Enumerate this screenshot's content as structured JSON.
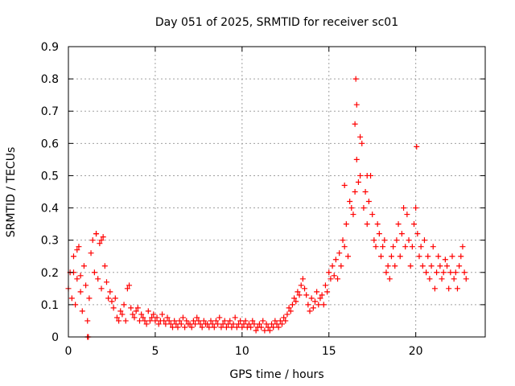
{
  "chart_data": {
    "type": "scatter",
    "title": "Day 051 of 2025, SRMTID for receiver sc01",
    "xlabel": "GPS time / hours",
    "ylabel": "SRMTID / TECUs",
    "xlim": [
      0,
      24
    ],
    "ylim": [
      0,
      0.9
    ],
    "xticks": [
      0,
      5,
      10,
      15,
      20
    ],
    "yticks": [
      0,
      0.1,
      0.2,
      0.3,
      0.4,
      0.5,
      0.6,
      0.7,
      0.8,
      0.9
    ],
    "grid": true,
    "marker": "+",
    "color": "#ff0000",
    "series": [
      {
        "name": "SRMTID sc01",
        "x": [
          0.0,
          0.1,
          0.2,
          0.3,
          0.4,
          0.5,
          0.6,
          0.7,
          0.8,
          0.9,
          1.0,
          1.1,
          1.2,
          1.3,
          1.4,
          1.5,
          1.6,
          1.7,
          1.8,
          1.9,
          2.0,
          2.1,
          2.2,
          2.3,
          2.4,
          2.5,
          2.6,
          2.7,
          2.8,
          2.9,
          3.0,
          3.1,
          3.2,
          3.3,
          3.4,
          3.5,
          3.6,
          3.7,
          3.8,
          3.9,
          4.0,
          4.1,
          4.2,
          4.3,
          4.4,
          4.5,
          4.6,
          4.7,
          4.8,
          4.9,
          5.0,
          5.1,
          5.2,
          5.3,
          5.4,
          5.5,
          5.6,
          5.7,
          5.8,
          5.9,
          6.0,
          6.1,
          6.2,
          6.3,
          6.4,
          6.5,
          6.6,
          6.7,
          6.8,
          6.9,
          7.0,
          7.1,
          7.2,
          7.3,
          7.4,
          7.5,
          7.6,
          7.7,
          7.8,
          7.9,
          8.0,
          8.1,
          8.2,
          8.3,
          8.4,
          8.5,
          8.6,
          8.7,
          8.8,
          8.9,
          9.0,
          9.1,
          9.2,
          9.3,
          9.4,
          9.5,
          9.6,
          9.7,
          9.8,
          9.9,
          10.0,
          10.1,
          10.2,
          10.3,
          10.4,
          10.5,
          10.6,
          10.7,
          10.8,
          10.9,
          11.0,
          11.1,
          11.2,
          11.3,
          11.4,
          11.5,
          11.6,
          11.7,
          11.8,
          11.9,
          12.0,
          12.1,
          12.2,
          12.3,
          12.4,
          12.5,
          12.6,
          12.7,
          12.8,
          12.9,
          13.0,
          13.1,
          13.2,
          13.3,
          13.4,
          13.5,
          13.6,
          13.7,
          13.8,
          13.9,
          14.0,
          14.1,
          14.2,
          14.3,
          14.4,
          14.5,
          14.6,
          14.7,
          14.8,
          14.9,
          15.0,
          15.1,
          15.2,
          15.3,
          15.4,
          15.5,
          15.6,
          15.7,
          15.8,
          15.9,
          16.0,
          16.1,
          16.2,
          16.3,
          16.4,
          16.5,
          16.6,
          16.7,
          16.8,
          16.9,
          17.0,
          17.1,
          17.2,
          17.3,
          17.4,
          17.5,
          17.6,
          17.7,
          17.8,
          17.9,
          18.0,
          18.1,
          18.2,
          18.3,
          18.4,
          18.5,
          18.6,
          18.7,
          18.8,
          18.9,
          19.0,
          19.1,
          19.2,
          19.3,
          19.4,
          19.5,
          19.6,
          19.7,
          19.8,
          19.9,
          20.0,
          20.1,
          20.2,
          20.3,
          20.4,
          20.5,
          20.6,
          20.7,
          20.8,
          20.9,
          21.0,
          21.1,
          21.2,
          21.3,
          21.4,
          21.5,
          21.6,
          21.7,
          21.8,
          21.9,
          22.0,
          22.1,
          22.2,
          22.3,
          22.4,
          22.5,
          22.6,
          22.7,
          22.8,
          22.9,
          16.55,
          16.6,
          16.5,
          20.05,
          15.9,
          16.8,
          17.2,
          1.1,
          1.15,
          0.5,
          0.7,
          0.3,
          1.6,
          1.9
        ],
        "y": [
          0.15,
          0.2,
          0.12,
          0.25,
          0.1,
          0.18,
          0.28,
          0.14,
          0.08,
          0.22,
          0.16,
          0.05,
          0.12,
          0.26,
          0.3,
          0.2,
          0.32,
          0.18,
          0.29,
          0.15,
          0.31,
          0.22,
          0.17,
          0.12,
          0.14,
          0.11,
          0.09,
          0.12,
          0.06,
          0.05,
          0.08,
          0.07,
          0.1,
          0.05,
          0.15,
          0.16,
          0.09,
          0.07,
          0.06,
          0.08,
          0.09,
          0.05,
          0.07,
          0.06,
          0.05,
          0.04,
          0.08,
          0.05,
          0.06,
          0.07,
          0.05,
          0.06,
          0.04,
          0.05,
          0.07,
          0.05,
          0.04,
          0.06,
          0.05,
          0.04,
          0.03,
          0.05,
          0.04,
          0.03,
          0.05,
          0.04,
          0.06,
          0.03,
          0.05,
          0.04,
          0.04,
          0.03,
          0.05,
          0.04,
          0.06,
          0.05,
          0.04,
          0.03,
          0.05,
          0.04,
          0.04,
          0.03,
          0.05,
          0.04,
          0.03,
          0.05,
          0.04,
          0.06,
          0.03,
          0.04,
          0.05,
          0.03,
          0.04,
          0.05,
          0.03,
          0.04,
          0.06,
          0.03,
          0.04,
          0.05,
          0.03,
          0.04,
          0.05,
          0.03,
          0.04,
          0.03,
          0.05,
          0.04,
          0.02,
          0.03,
          0.04,
          0.03,
          0.05,
          0.02,
          0.04,
          0.03,
          0.02,
          0.04,
          0.03,
          0.05,
          0.04,
          0.03,
          0.05,
          0.04,
          0.06,
          0.05,
          0.07,
          0.09,
          0.08,
          0.1,
          0.12,
          0.11,
          0.14,
          0.13,
          0.16,
          0.18,
          0.15,
          0.13,
          0.1,
          0.08,
          0.12,
          0.09,
          0.11,
          0.14,
          0.1,
          0.12,
          0.13,
          0.1,
          0.16,
          0.14,
          0.2,
          0.18,
          0.22,
          0.19,
          0.24,
          0.18,
          0.26,
          0.22,
          0.3,
          0.28,
          0.35,
          0.25,
          0.42,
          0.4,
          0.38,
          0.45,
          0.55,
          0.48,
          0.5,
          0.6,
          0.4,
          0.45,
          0.35,
          0.42,
          0.5,
          0.38,
          0.3,
          0.28,
          0.35,
          0.32,
          0.25,
          0.28,
          0.3,
          0.2,
          0.22,
          0.18,
          0.25,
          0.28,
          0.22,
          0.3,
          0.35,
          0.25,
          0.32,
          0.4,
          0.28,
          0.38,
          0.3,
          0.22,
          0.28,
          0.35,
          0.4,
          0.32,
          0.25,
          0.28,
          0.22,
          0.3,
          0.2,
          0.25,
          0.18,
          0.22,
          0.28,
          0.15,
          0.2,
          0.25,
          0.22,
          0.18,
          0.2,
          0.24,
          0.22,
          0.15,
          0.2,
          0.25,
          0.18,
          0.2,
          0.15,
          0.22,
          0.25,
          0.28,
          0.2,
          0.18,
          0.8,
          0.72,
          0.66,
          0.59,
          0.47,
          0.62,
          0.5,
          0.0,
          0.0,
          0.27,
          0.19,
          0.2,
          0.32,
          0.3
        ]
      }
    ]
  }
}
